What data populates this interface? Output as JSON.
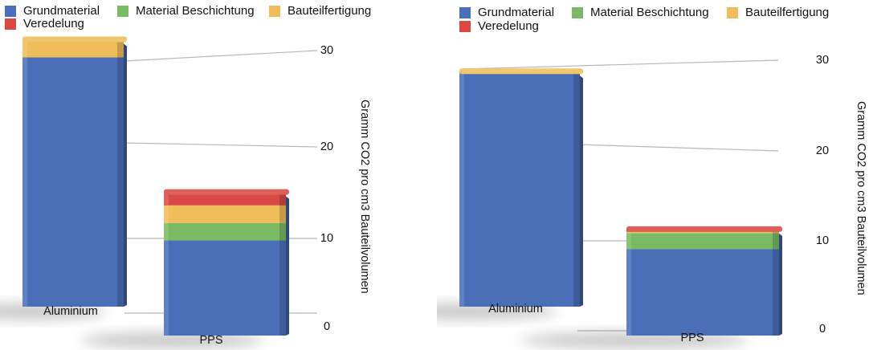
{
  "chart_data": [
    {
      "type": "bar",
      "stacked": true,
      "categories": [
        "Aluminium",
        "PPS"
      ],
      "series": [
        {
          "name": "Grundmaterial",
          "values": [
            27,
            10.3
          ],
          "color": "#4a6fb8"
        },
        {
          "name": "Material Beschichtung",
          "values": [
            0,
            1.9
          ],
          "color": "#7aba63"
        },
        {
          "name": "Bauteilfertigung",
          "values": [
            2.0,
            1.9
          ],
          "color": "#f0bd5b"
        },
        {
          "name": "Veredelung",
          "values": [
            0,
            1.5
          ],
          "color": "#d94a45"
        }
      ],
      "ylabel": "Gramm CO2 pro cm3 Bauteilvolumen",
      "ylim": [
        0,
        30
      ],
      "yticks": [
        0,
        10,
        20,
        30
      ],
      "grid": true,
      "legend_placement": "top"
    },
    {
      "type": "bar",
      "stacked": true,
      "categories": [
        "Aluminium",
        "PPS"
      ],
      "series": [
        {
          "name": "Grundmaterial",
          "values": [
            26.5,
            9.8
          ],
          "color": "#4a6fb8"
        },
        {
          "name": "Material Beschichtung",
          "values": [
            0,
            1.8
          ],
          "color": "#7aba63"
        },
        {
          "name": "Bauteilfertigung",
          "values": [
            0.2,
            0.15
          ],
          "color": "#f0bd5b"
        },
        {
          "name": "Veredelung",
          "values": [
            0,
            0.35
          ],
          "color": "#d94a45"
        }
      ],
      "ylabel": "Gramm CO2 pro cm3 Bauteilvolumen",
      "ylim": [
        0,
        30
      ],
      "yticks": [
        0,
        10,
        20,
        30
      ],
      "grid": true,
      "legend_placement": "top"
    }
  ]
}
